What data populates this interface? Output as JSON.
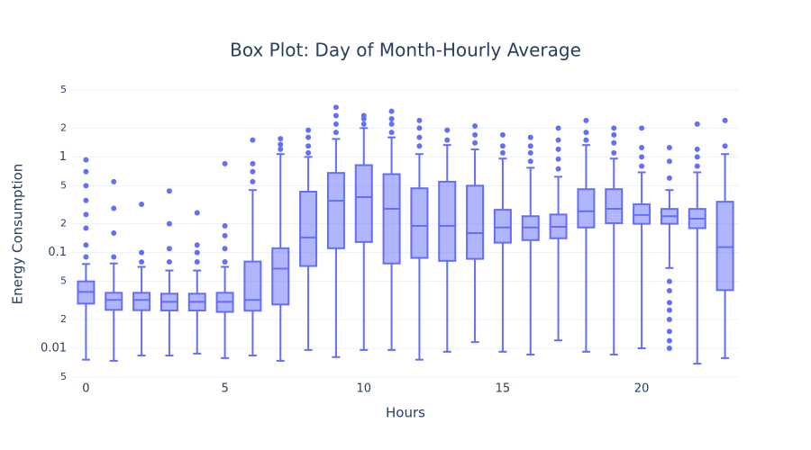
{
  "chart_data": {
    "type": "box",
    "title": "Box Plot: Day of Month-Hourly Average",
    "x_label": "Hours",
    "y_label": "Energy Consumption",
    "color": "#636efa",
    "log_y": true,
    "grid": true,
    "x": [
      0,
      1,
      2,
      3,
      4,
      5,
      6,
      7,
      8,
      9,
      10,
      11,
      12,
      13,
      14,
      15,
      16,
      17,
      18,
      19,
      20,
      21,
      22,
      23
    ],
    "boxes": [
      {
        "lower": 0.0076,
        "q1": 0.0293,
        "median": 0.0388,
        "q3": 0.05,
        "upper": 0.076,
        "outliers": [
          0.09,
          0.12,
          0.18,
          0.25,
          0.35,
          0.5,
          0.7,
          0.93
        ]
      },
      {
        "lower": 0.0074,
        "q1": 0.0252,
        "median": 0.032,
        "q3": 0.038,
        "upper": 0.077,
        "outliers": [
          0.09,
          0.16,
          0.29,
          0.55
        ]
      },
      {
        "lower": 0.0084,
        "q1": 0.025,
        "median": 0.032,
        "q3": 0.038,
        "upper": 0.071,
        "outliers": [
          0.08,
          0.1,
          0.32
        ]
      },
      {
        "lower": 0.0084,
        "q1": 0.0248,
        "median": 0.0306,
        "q3": 0.0372,
        "upper": 0.065,
        "outliers": [
          0.08,
          0.11,
          0.2,
          0.44
        ]
      },
      {
        "lower": 0.0088,
        "q1": 0.0248,
        "median": 0.0306,
        "q3": 0.0372,
        "upper": 0.065,
        "outliers": [
          0.08,
          0.1,
          0.12,
          0.26
        ]
      },
      {
        "lower": 0.0079,
        "q1": 0.024,
        "median": 0.0306,
        "q3": 0.038,
        "upper": 0.071,
        "outliers": [
          0.08,
          0.11,
          0.15,
          0.19,
          0.85
        ]
      },
      {
        "lower": 0.0084,
        "q1": 0.0247,
        "median": 0.032,
        "q3": 0.0806,
        "upper": 0.45,
        "outliers": [
          0.55,
          0.7,
          0.85,
          1.5
        ]
      },
      {
        "lower": 0.0074,
        "q1": 0.0287,
        "median": 0.068,
        "q3": 0.111,
        "upper": 1.07,
        "outliers": [
          1.2,
          1.35,
          1.55
        ]
      },
      {
        "lower": 0.0096,
        "q1": 0.0724,
        "median": 0.144,
        "q3": 0.433,
        "upper": 1.0,
        "outliers": [
          1.1,
          1.3,
          1.6,
          1.9
        ]
      },
      {
        "lower": 0.0081,
        "q1": 0.111,
        "median": 0.348,
        "q3": 0.68,
        "upper": 1.54,
        "outliers": [
          1.8,
          2.2,
          2.7,
          3.3
        ]
      },
      {
        "lower": 0.0096,
        "q1": 0.129,
        "median": 0.38,
        "q3": 0.82,
        "upper": 2.0,
        "outliers": [
          2.2,
          2.5,
          2.7
        ]
      },
      {
        "lower": 0.0096,
        "q1": 0.077,
        "median": 0.287,
        "q3": 0.66,
        "upper": 1.6,
        "outliers": [
          1.8,
          2.2,
          2.5,
          3.0
        ]
      },
      {
        "lower": 0.0076,
        "q1": 0.088,
        "median": 0.19,
        "q3": 0.47,
        "upper": 1.07,
        "outliers": [
          1.3,
          1.6,
          2.0,
          2.4
        ]
      },
      {
        "lower": 0.0092,
        "q1": 0.082,
        "median": 0.19,
        "q3": 0.55,
        "upper": 1.33,
        "outliers": [
          1.5,
          1.9
        ]
      },
      {
        "lower": 0.0116,
        "q1": 0.086,
        "median": 0.16,
        "q3": 0.5,
        "upper": 1.2,
        "outliers": [
          1.4,
          1.7,
          2.1
        ]
      },
      {
        "lower": 0.0092,
        "q1": 0.127,
        "median": 0.183,
        "q3": 0.28,
        "upper": 0.96,
        "outliers": [
          1.1,
          1.3,
          1.7
        ]
      },
      {
        "lower": 0.0086,
        "q1": 0.135,
        "median": 0.183,
        "q3": 0.24,
        "upper": 0.77,
        "outliers": [
          0.9,
          1.1,
          1.3,
          1.6
        ]
      },
      {
        "lower": 0.0121,
        "q1": 0.141,
        "median": 0.186,
        "q3": 0.25,
        "upper": 0.62,
        "outliers": [
          0.75,
          0.95,
          1.2,
          1.5,
          2.0
        ]
      },
      {
        "lower": 0.0092,
        "q1": 0.183,
        "median": 0.27,
        "q3": 0.46,
        "upper": 1.33,
        "outliers": [
          1.5,
          1.8,
          2.4
        ]
      },
      {
        "lower": 0.0086,
        "q1": 0.203,
        "median": 0.287,
        "q3": 0.46,
        "upper": 0.96,
        "outliers": [
          1.1,
          1.4,
          1.7,
          2.0
        ]
      },
      {
        "lower": 0.01,
        "q1": 0.2,
        "median": 0.247,
        "q3": 0.32,
        "upper": 0.69,
        "outliers": [
          0.8,
          1.0,
          1.25,
          2.0
        ]
      },
      {
        "lower": 0.069,
        "q1": 0.2,
        "median": 0.24,
        "q3": 0.286,
        "upper": 0.45,
        "outliers": [
          0.6,
          0.9,
          1.25,
          0.05,
          0.04,
          0.03,
          0.025,
          0.02,
          0.015,
          0.012,
          0.01
        ]
      },
      {
        "lower": 0.0069,
        "q1": 0.18,
        "median": 0.226,
        "q3": 0.286,
        "upper": 0.69,
        "outliers": [
          0.8,
          1.0,
          1.2,
          2.2
        ]
      },
      {
        "lower": 0.0079,
        "q1": 0.0405,
        "median": 0.114,
        "q3": 0.34,
        "upper": 1.07,
        "outliers": [
          1.3,
          2.4
        ]
      }
    ],
    "xlim": [
      -0.5,
      23.5
    ],
    "xticks": [
      0,
      5,
      10,
      15,
      20
    ],
    "ylim": [
      0.005,
      5
    ],
    "yticks": [
      {
        "value": 0.005,
        "label": "5"
      },
      0.01,
      {
        "value": 0.02,
        "label": "2"
      },
      {
        "value": 0.05,
        "label": "5"
      },
      0.1,
      {
        "value": 0.2,
        "label": "2"
      },
      {
        "value": 0.5,
        "label": "5"
      },
      1,
      {
        "value": 2,
        "label": "2"
      },
      {
        "value": 5,
        "label": "5"
      }
    ]
  }
}
